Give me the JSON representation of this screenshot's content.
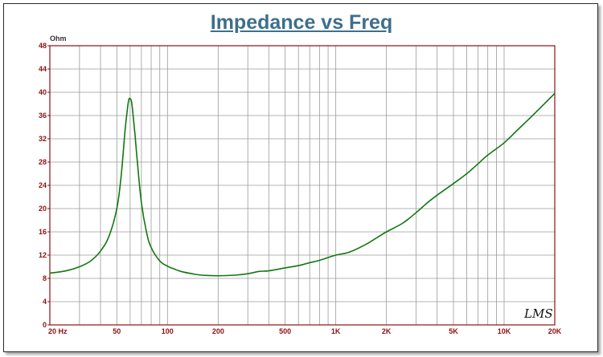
{
  "chart_data": {
    "type": "line",
    "title": "Impedance vs Freq",
    "ylabel": "Ohm",
    "xlabel": "",
    "x_scale": "log",
    "xlim": [
      20,
      20000
    ],
    "ylim": [
      0,
      48
    ],
    "grid": true,
    "x_ticks": [
      {
        "value": 20,
        "label": "20  Hz"
      },
      {
        "value": 50,
        "label": "50"
      },
      {
        "value": 100,
        "label": "100"
      },
      {
        "value": 200,
        "label": "200"
      },
      {
        "value": 500,
        "label": "500"
      },
      {
        "value": 1000,
        "label": "1K"
      },
      {
        "value": 2000,
        "label": "2K"
      },
      {
        "value": 5000,
        "label": "5K"
      },
      {
        "value": 10000,
        "label": "10K"
      },
      {
        "value": 20000,
        "label": "20K"
      }
    ],
    "y_ticks": [
      0,
      4,
      8,
      12,
      16,
      20,
      24,
      28,
      32,
      36,
      40,
      44,
      48
    ],
    "series": [
      {
        "name": "",
        "color": "#117711",
        "x": [
          20,
          25,
          30,
          35,
          40,
          45,
          50,
          53,
          56,
          58,
          59,
          60,
          61,
          62,
          64,
          66,
          70,
          75,
          80,
          90,
          100,
          110,
          120,
          140,
          160,
          200,
          250,
          300,
          350,
          400,
          500,
          600,
          700,
          800,
          1000,
          1200,
          1500,
          1800,
          2000,
          2500,
          3000,
          3500,
          4000,
          5000,
          6000,
          7000,
          8000,
          10000,
          12000,
          15000,
          20000
        ],
        "y": [
          8.9,
          9.3,
          10.0,
          11.0,
          12.7,
          15.3,
          20.0,
          25.5,
          33.5,
          37.5,
          38.8,
          38.9,
          38.5,
          37.0,
          33.0,
          28.5,
          21.0,
          16.0,
          13.3,
          11.0,
          10.1,
          9.6,
          9.2,
          8.8,
          8.55,
          8.45,
          8.55,
          8.8,
          9.2,
          9.3,
          9.8,
          10.2,
          10.7,
          11.1,
          12.0,
          12.5,
          13.8,
          15.2,
          16.0,
          17.5,
          19.3,
          21.0,
          22.3,
          24.3,
          26.0,
          27.7,
          29.2,
          31.3,
          33.5,
          36.2,
          39.8
        ]
      }
    ]
  },
  "signature_text": "LMS",
  "colors": {
    "title": "#3d6f8c",
    "axis": "#8b1010",
    "grid": "#9a9a9a",
    "frame": "#2a2a2a"
  }
}
